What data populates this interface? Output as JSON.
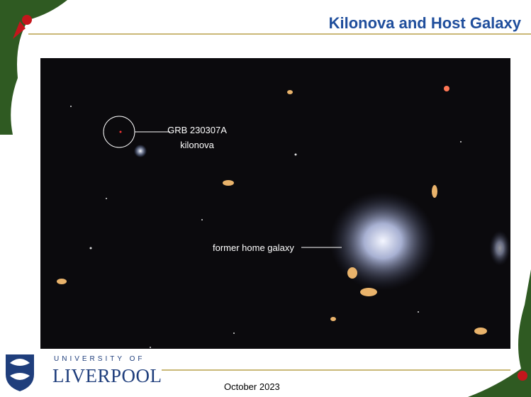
{
  "header": {
    "title": "Kilonova and Host Galaxy"
  },
  "image": {
    "annotations": [
      "GRB 230307A",
      "kilonova",
      "former home galaxy"
    ]
  },
  "footer": {
    "university": "UNIVERSITY OF",
    "name": "LIVERPOOL",
    "date": "October 2023"
  }
}
